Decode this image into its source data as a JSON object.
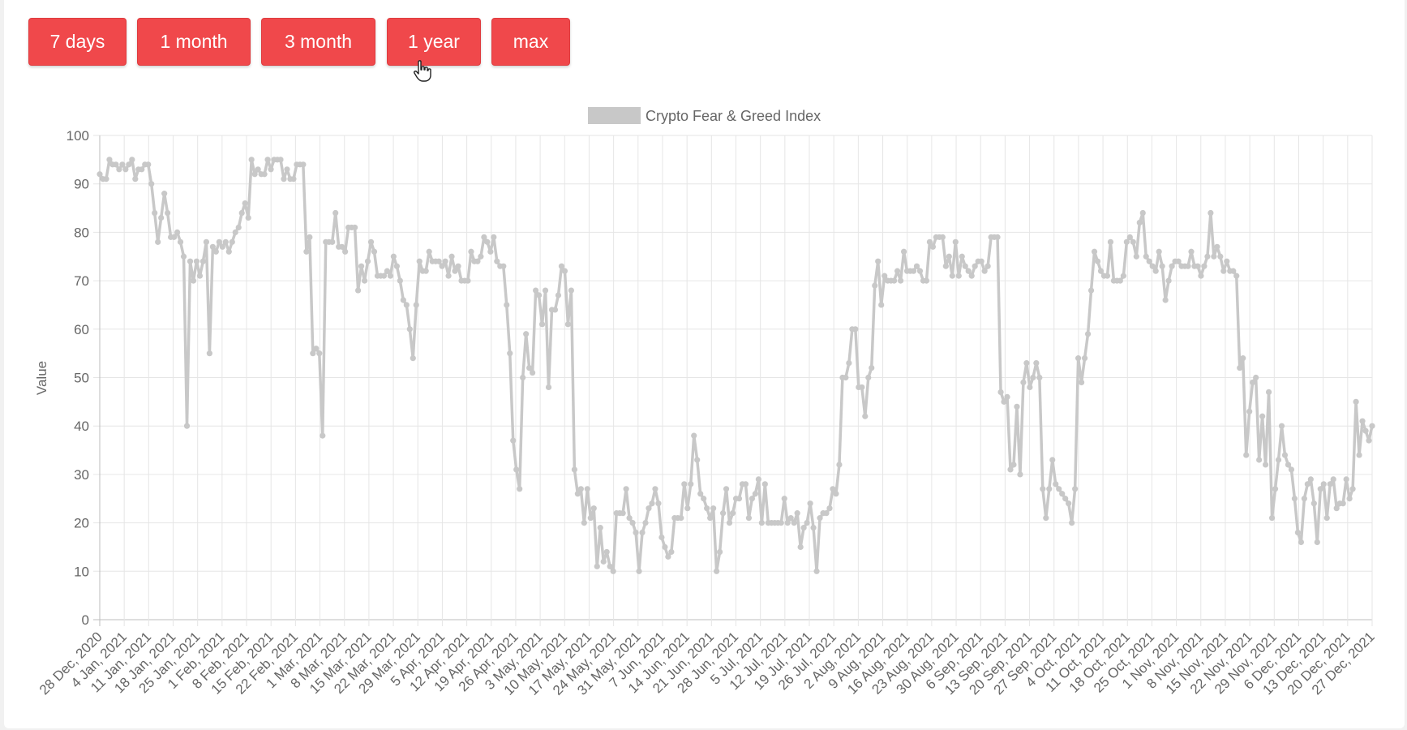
{
  "range_buttons": [
    {
      "label": "7 days"
    },
    {
      "label": "1 month"
    },
    {
      "label": "3 month"
    },
    {
      "label": "1 year"
    },
    {
      "label": "max"
    }
  ],
  "colors": {
    "button_bg": "#f0484b",
    "button_text": "#ffffff",
    "series": "#c8c8c8",
    "grid": "#e6e6e6",
    "axis_text": "#666666"
  },
  "chart_data": {
    "type": "line",
    "title": "",
    "xlabel": "",
    "ylabel": "Value",
    "ylim": [
      0,
      100
    ],
    "y_ticks": [
      0,
      10,
      20,
      30,
      40,
      50,
      60,
      70,
      80,
      90,
      100
    ],
    "x_tick_labels": [
      "28 Dec, 2020",
      "4 Jan, 2021",
      "11 Jan, 2021",
      "18 Jan, 2021",
      "25 Jan, 2021",
      "1 Feb, 2021",
      "8 Feb, 2021",
      "15 Feb, 2021",
      "22 Feb, 2021",
      "1 Mar, 2021",
      "8 Mar, 2021",
      "15 Mar, 2021",
      "22 Mar, 2021",
      "29 Mar, 2021",
      "5 Apr, 2021",
      "12 Apr, 2021",
      "19 Apr, 2021",
      "26 Apr, 2021",
      "3 May, 2021",
      "10 May, 2021",
      "17 May, 2021",
      "24 May, 2021",
      "31 May, 2021",
      "7 Jun, 2021",
      "14 Jun, 2021",
      "21 Jun, 2021",
      "28 Jun, 2021",
      "5 Jul, 2021",
      "12 Jul, 2021",
      "19 Jul, 2021",
      "26 Jul, 2021",
      "2 Aug, 2021",
      "9 Aug, 2021",
      "16 Aug, 2021",
      "23 Aug, 2021",
      "30 Aug, 2021",
      "6 Sep, 2021",
      "13 Sep, 2021",
      "20 Sep, 2021",
      "27 Sep, 2021",
      "4 Oct, 2021",
      "11 Oct, 2021",
      "18 Oct, 2021",
      "25 Oct, 2021",
      "1 Nov, 2021",
      "8 Nov, 2021",
      "15 Nov, 2021",
      "22 Nov, 2021",
      "29 Nov, 2021",
      "6 Dec, 2021",
      "13 Dec, 2021",
      "20 Dec, 2021",
      "27 Dec, 2021"
    ],
    "legend": {
      "position": "top",
      "label": "Crypto Fear & Greed Index"
    },
    "grid": true,
    "series": [
      {
        "name": "Crypto Fear & Greed Index",
        "color": "#c8c8c8",
        "values": [
          92,
          91,
          91,
          95,
          94,
          94,
          93,
          94,
          93,
          94,
          95,
          91,
          93,
          93,
          94,
          94,
          90,
          84,
          78,
          83,
          88,
          84,
          79,
          79,
          80,
          78,
          75,
          40,
          74,
          70,
          74,
          71,
          74,
          78,
          55,
          77,
          76,
          78,
          77,
          78,
          76,
          78,
          80,
          81,
          84,
          86,
          83,
          95,
          92,
          93,
          92,
          92,
          95,
          93,
          95,
          95,
          95,
          91,
          93,
          91,
          91,
          94,
          94,
          94,
          76,
          79,
          55,
          56,
          55,
          38,
          78,
          78,
          78,
          84,
          77,
          77,
          76,
          81,
          81,
          81,
          68,
          73,
          70,
          74,
          78,
          76,
          71,
          71,
          71,
          72,
          71,
          75,
          73,
          70,
          66,
          65,
          60,
          54,
          65,
          74,
          72,
          72,
          76,
          74,
          74,
          74,
          73,
          74,
          71,
          75,
          72,
          73,
          70,
          70,
          70,
          76,
          74,
          74,
          75,
          79,
          78,
          76,
          79,
          74,
          73,
          73,
          65,
          55,
          37,
          31,
          27,
          50,
          59,
          52,
          51,
          68,
          67,
          61,
          68,
          48,
          64,
          64,
          67,
          73,
          72,
          61,
          68,
          31,
          26,
          27,
          20,
          27,
          21,
          23,
          11,
          19,
          12,
          14,
          11,
          10,
          22,
          22,
          22,
          27,
          21,
          20,
          18,
          10,
          18,
          20,
          23,
          24,
          27,
          24,
          17,
          15,
          13,
          14,
          21,
          21,
          21,
          28,
          23,
          28,
          38,
          33,
          26,
          25,
          23,
          21,
          23,
          10,
          14,
          22,
          27,
          20,
          22,
          25,
          25,
          28,
          28,
          21,
          25,
          26,
          29,
          20,
          28,
          20,
          20,
          20,
          20,
          20,
          25,
          20,
          21,
          20,
          22,
          15,
          19,
          20,
          24,
          19,
          10,
          21,
          22,
          22,
          23,
          27,
          26,
          32,
          50,
          50,
          53,
          60,
          60,
          48,
          48,
          42,
          50,
          52,
          69,
          74,
          65,
          71,
          70,
          70,
          70,
          72,
          70,
          76,
          72,
          72,
          72,
          73,
          72,
          70,
          70,
          78,
          77,
          79,
          79,
          79,
          73,
          75,
          71,
          78,
          71,
          75,
          73,
          72,
          71,
          73,
          74,
          74,
          72,
          73,
          79,
          79,
          79,
          47,
          45,
          46,
          31,
          32,
          44,
          30,
          49,
          53,
          48,
          50,
          53,
          50,
          27,
          21,
          27,
          33,
          28,
          27,
          26,
          25,
          24,
          20,
          27,
          54,
          49,
          54,
          59,
          68,
          76,
          74,
          72,
          71,
          71,
          78,
          70,
          70,
          70,
          71,
          78,
          79,
          78,
          75,
          82,
          84,
          75,
          74,
          73,
          72,
          76,
          73,
          66,
          70,
          73,
          74,
          74,
          73,
          73,
          73,
          76,
          73,
          73,
          71,
          73,
          75,
          84,
          75,
          77,
          75,
          72,
          74,
          72,
          72,
          71,
          52,
          54,
          34,
          43,
          49,
          50,
          33,
          42,
          32,
          47,
          21,
          27,
          33,
          40,
          34,
          32,
          31,
          25,
          18,
          16,
          25,
          28,
          29,
          24,
          16,
          27,
          28,
          21,
          28,
          29,
          23,
          24,
          24,
          29,
          25,
          27,
          45,
          34,
          41,
          39,
          37,
          40
        ]
      }
    ]
  }
}
